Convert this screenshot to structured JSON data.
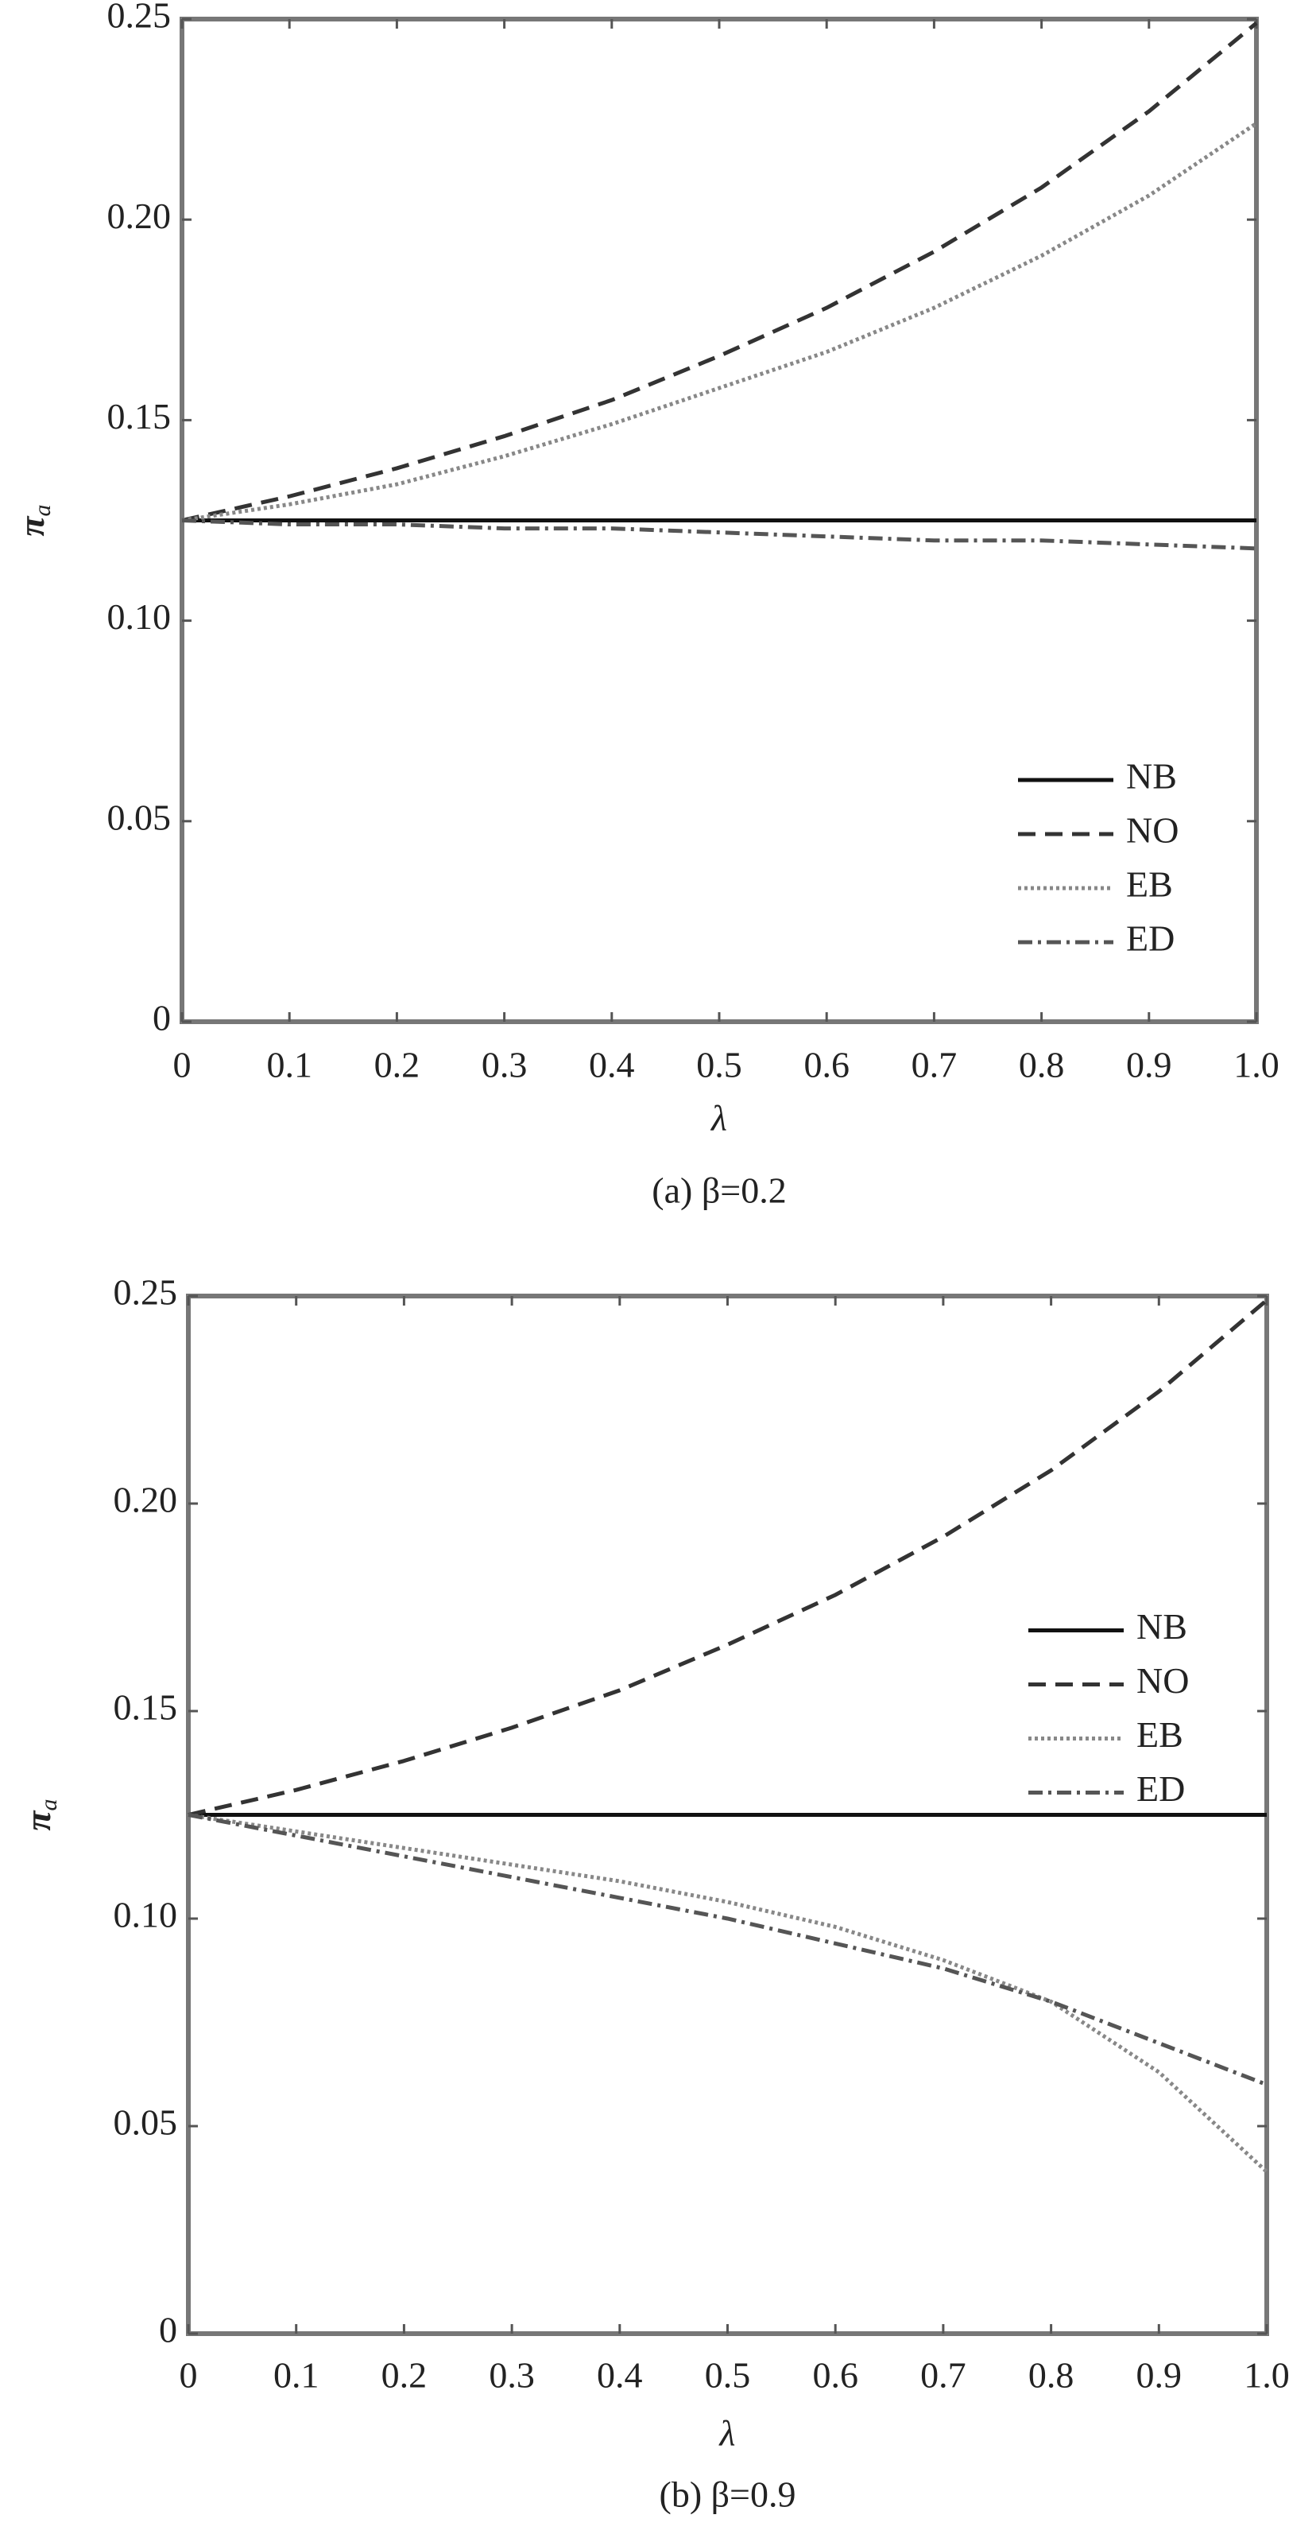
{
  "chart_data": [
    {
      "type": "line",
      "title": "(a) β=0.2",
      "xlabel": "λ",
      "ylabel": "π",
      "ylabel_subscript": "a",
      "x": [
        0,
        0.1,
        0.2,
        0.3,
        0.4,
        0.5,
        0.6,
        0.7,
        0.8,
        0.9,
        1.0
      ],
      "series": [
        {
          "name": "NB",
          "color": "#111111",
          "dash": "solid",
          "values": [
            0.125,
            0.125,
            0.125,
            0.125,
            0.125,
            0.125,
            0.125,
            0.125,
            0.125,
            0.125,
            0.125
          ]
        },
        {
          "name": "NO",
          "color": "#333333",
          "dash": "dashed",
          "values": [
            0.125,
            0.131,
            0.138,
            0.146,
            0.155,
            0.166,
            0.178,
            0.192,
            0.208,
            0.227,
            0.249
          ]
        },
        {
          "name": "EB",
          "color": "#888888",
          "dash": "dotted",
          "values": [
            0.125,
            0.129,
            0.134,
            0.141,
            0.149,
            0.158,
            0.167,
            0.178,
            0.191,
            0.206,
            0.224
          ]
        },
        {
          "name": "ED",
          "color": "#555555",
          "dash": "dashdot",
          "values": [
            0.125,
            0.124,
            0.124,
            0.123,
            0.123,
            0.122,
            0.121,
            0.12,
            0.12,
            0.119,
            0.118
          ]
        }
      ],
      "xlim": [
        0,
        1
      ],
      "xticks": [
        0,
        0.1,
        0.2,
        0.3,
        0.4,
        0.5,
        0.6,
        0.7,
        0.8,
        0.9,
        {
          "value": 1,
          "label": "1.0"
        }
      ],
      "ylim": [
        0,
        0.25
      ],
      "yticks": [
        0,
        0.05,
        {
          "value": 0.1,
          "label": "0.10"
        },
        0.15,
        {
          "value": 0.2,
          "label": "0.20"
        },
        0.25
      ],
      "legend": "lower right"
    },
    {
      "type": "line",
      "title": "(b) β=0.9",
      "xlabel": "λ",
      "ylabel": "π",
      "ylabel_subscript": "a",
      "x": [
        0,
        0.1,
        0.2,
        0.3,
        0.4,
        0.5,
        0.6,
        0.7,
        0.8,
        0.9,
        1.0
      ],
      "series": [
        {
          "name": "NB",
          "color": "#111111",
          "dash": "solid",
          "values": [
            0.125,
            0.125,
            0.125,
            0.125,
            0.125,
            0.125,
            0.125,
            0.125,
            0.125,
            0.125,
            0.125
          ]
        },
        {
          "name": "NO",
          "color": "#333333",
          "dash": "dashed",
          "values": [
            0.125,
            0.131,
            0.138,
            0.146,
            0.155,
            0.166,
            0.178,
            0.192,
            0.208,
            0.227,
            0.249
          ]
        },
        {
          "name": "EB",
          "color": "#888888",
          "dash": "dotted",
          "values": [
            0.125,
            0.121,
            0.117,
            0.113,
            0.109,
            0.104,
            0.098,
            0.09,
            0.08,
            0.063,
            0.039
          ]
        },
        {
          "name": "ED",
          "color": "#555555",
          "dash": "dashdot",
          "values": [
            0.125,
            0.12,
            0.115,
            0.11,
            0.105,
            0.1,
            0.094,
            0.088,
            0.08,
            0.07,
            0.06
          ]
        }
      ],
      "xlim": [
        0,
        1
      ],
      "xticks": [
        0,
        0.1,
        0.2,
        0.3,
        0.4,
        0.5,
        0.6,
        0.7,
        0.8,
        0.9,
        {
          "value": 1,
          "label": "1.0"
        }
      ],
      "ylim": [
        0,
        0.25
      ],
      "yticks": [
        0,
        0.05,
        {
          "value": 0.1,
          "label": "0.10"
        },
        0.15,
        {
          "value": 0.2,
          "label": "0.20"
        },
        0.25
      ],
      "legend": "center right"
    }
  ]
}
